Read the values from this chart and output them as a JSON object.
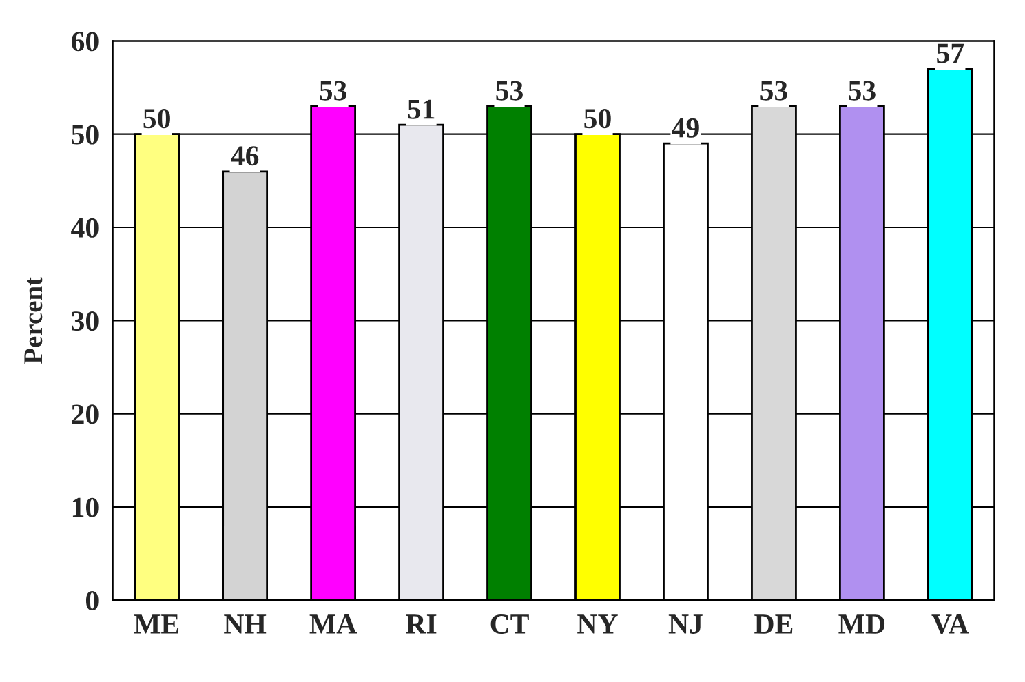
{
  "chart_data": {
    "type": "bar",
    "ylabel": "Percent",
    "categories": [
      "ME",
      "NH",
      "MA",
      "RI",
      "CT",
      "NY",
      "NJ",
      "DE",
      "MD",
      "VA"
    ],
    "values": [
      50,
      46,
      53,
      51,
      53,
      50,
      49,
      53,
      53,
      57
    ],
    "colors": [
      "#ffff80",
      "#d3d3d3",
      "#ff00ff",
      "#e8e8ee",
      "#008000",
      "#ffff00",
      "#ffffff",
      "#d8d8d8",
      "#b090f0",
      "#00ffff"
    ],
    "ylim": [
      0,
      60
    ],
    "yticks": [
      0,
      10,
      20,
      30,
      40,
      50,
      60
    ],
    "grid": "y",
    "data_labels": true
  }
}
